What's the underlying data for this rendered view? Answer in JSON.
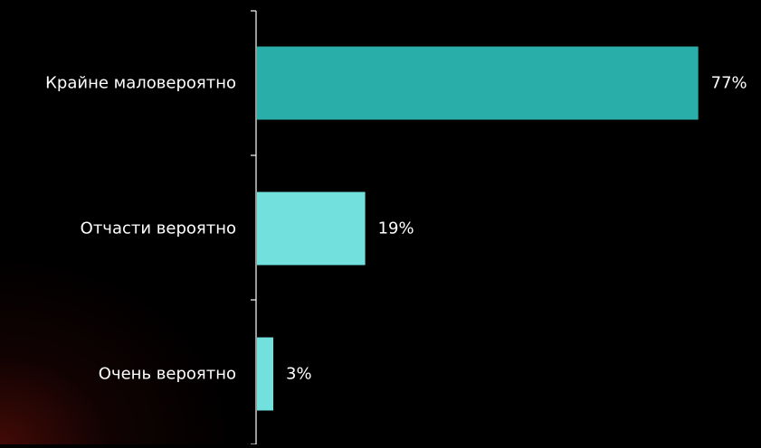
{
  "chart_data": {
    "type": "bar",
    "orientation": "horizontal",
    "title": "",
    "xlabel": "",
    "ylabel": "",
    "categories": [
      "Крайне маловероятно",
      "Отчасти вероятно",
      "Очень вероятно"
    ],
    "values": [
      77,
      19,
      3
    ],
    "value_labels": [
      "77%",
      "19%",
      "3%"
    ],
    "colors": [
      "#2aaeaa",
      "#72e0dd",
      "#72e0dd"
    ],
    "xlim": [
      0,
      78
    ],
    "grid": false,
    "legend": "none"
  },
  "theme": {
    "background": "#000000",
    "text_color": "#ffffff",
    "axis_color": "#ffffff"
  }
}
